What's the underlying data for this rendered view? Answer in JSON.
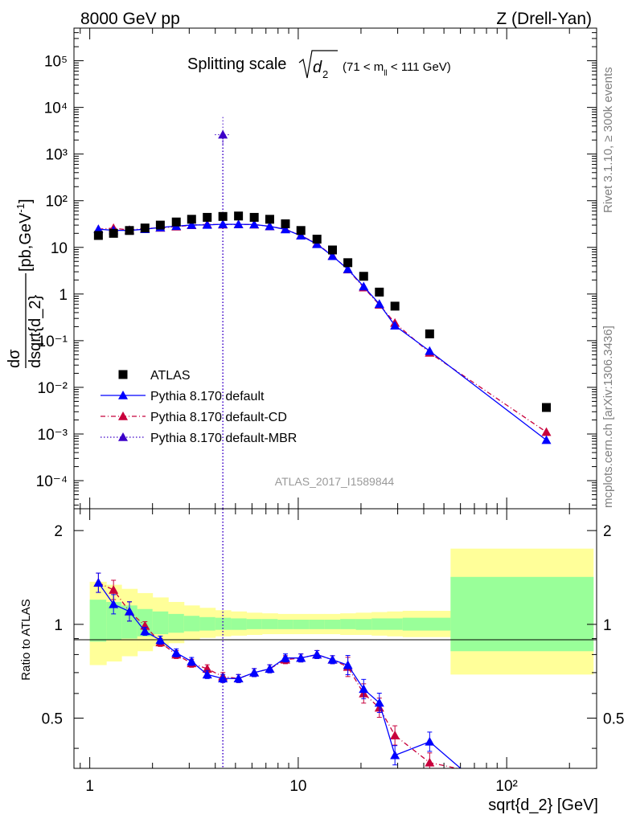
{
  "header": {
    "left": "8000 GeV pp",
    "right": "Z (Drell-Yan)"
  },
  "side_text": {
    "rivet": "Rivet 3.1.10, ≥ 300k events",
    "site": "mcplots.cern.ch [arXiv:1306.3436]"
  },
  "chart_data": [
    {
      "type": "scatter",
      "title": "Splitting scale √d₂ (71 < m_ll < 111 GeV)",
      "title_parts": {
        "main": "Splitting scale",
        "sub": "2",
        "cut": "(71 < m",
        "cut_sub": "ll",
        "cut_end": " < 111 GeV)"
      },
      "ylabel": "dσ / dsqrt{d_2} [pb,GeV⁻¹]",
      "ylabel_parts": {
        "num": "dσ",
        "den": "dsqrt{d_2}",
        "unit": " [pb,GeV",
        "unit_sup": "-1",
        "unit_end": "]"
      },
      "xlabel": "",
      "watermark": "ATLAS_2017_I1589844",
      "xscale": "log",
      "yscale": "log",
      "xlim": [
        0.84,
        270
      ],
      "ylim": [
        2.5e-05,
        500000
      ],
      "x_ticks": [
        "1",
        "10",
        "10²"
      ],
      "y_ticks": [
        "10⁻⁴",
        "10⁻³",
        "10⁻²",
        "10⁻¹",
        "1",
        "10",
        "10²",
        "10³",
        "10⁴",
        "10⁵"
      ],
      "legend_position": "bottom-left",
      "legend": [
        {
          "name": "ATLAS",
          "color": "#000000",
          "marker": "square"
        },
        {
          "name": "Pythia 8.170 default",
          "color": "#0000ff",
          "marker": "triangle",
          "dash": "solid"
        },
        {
          "name": "Pythia 8.170 default-CD",
          "color": "#c8003c",
          "marker": "triangle",
          "dash": "dashdot"
        },
        {
          "name": "Pythia 8.170 default-MBR",
          "color": "#3c00c8",
          "marker": "triangle",
          "dash": "dotted"
        }
      ],
      "x": [
        1.1,
        1.3,
        1.55,
        1.84,
        2.18,
        2.6,
        3.08,
        3.66,
        4.35,
        5.17,
        6.15,
        7.3,
        8.68,
        10.3,
        12.3,
        14.6,
        17.3,
        20.6,
        24.5,
        29.1,
        42.7,
        155
      ],
      "series": [
        {
          "name": "ATLAS",
          "values": [
            18,
            20,
            23,
            26,
            30,
            35,
            40,
            44,
            46,
            47,
            44,
            40,
            32,
            23,
            15,
            8.8,
            4.7,
            2.4,
            1.1,
            0.55,
            0.14,
            0.0037
          ]
        },
        {
          "name": "Pythia 8.170 default",
          "values": [
            24.5,
            23.2,
            23.1,
            24.5,
            26.7,
            28.5,
            30.2,
            30.3,
            31.3,
            31.2,
            30.9,
            28.3,
            24.2,
            17.8,
            11.7,
            6.5,
            3.4,
            1.45,
            0.61,
            0.21,
            0.06,
            0.00074
          ]
        },
        {
          "name": "Pythia 8.170 default-CD",
          "values": [
            24.5,
            25.8,
            23.5,
            25.4,
            26.2,
            27.8,
            29.8,
            31.0,
            30.8,
            31.0,
            30.8,
            28.2,
            24.6,
            18.0,
            12.0,
            6.6,
            3.35,
            1.38,
            0.59,
            0.24,
            0.055,
            0.0011
          ]
        },
        {
          "name": "Pythia 8.170 default-MBR",
          "x": [
            4.35
          ],
          "values": [
            2600
          ]
        }
      ]
    },
    {
      "type": "line",
      "ylabel": "Ratio to ATLAS",
      "xlabel": "sqrt{d_2} [GeV]",
      "xscale": "log",
      "xlim": [
        0.84,
        270
      ],
      "ylim": [
        0.345,
        2.35
      ],
      "y_ticks": [
        "0.5",
        "1",
        "2"
      ],
      "x_ticks": [
        "1",
        "10",
        "10²"
      ],
      "band_x_edges": [
        1,
        1.2,
        1.42,
        1.69,
        2.0,
        2.38,
        2.83,
        3.36,
        4.0,
        4.75,
        5.65,
        6.7,
        7.97,
        9.47,
        11.26,
        13.38,
        15.9,
        18.9,
        22.5,
        26.7,
        31.7,
        53.8,
        260
      ],
      "band_inner": [
        [
          0.88,
          0.89,
          0.9,
          0.915,
          0.93,
          0.94,
          0.95,
          0.955,
          0.96,
          0.96,
          0.965,
          0.965,
          0.965,
          0.965,
          0.965,
          0.965,
          0.965,
          0.96,
          0.96,
          0.96,
          0.955,
          0.82
        ],
        [
          1.2,
          1.18,
          1.15,
          1.12,
          1.1,
          1.08,
          1.065,
          1.055,
          1.05,
          1.045,
          1.04,
          1.04,
          1.035,
          1.035,
          1.035,
          1.035,
          1.04,
          1.04,
          1.045,
          1.045,
          1.05,
          1.42
        ]
      ],
      "band_outer": [
        [
          0.74,
          0.76,
          0.79,
          0.82,
          0.85,
          0.87,
          0.89,
          0.905,
          0.915,
          0.92,
          0.925,
          0.93,
          0.93,
          0.93,
          0.93,
          0.93,
          0.925,
          0.925,
          0.92,
          0.915,
          0.91,
          0.69
        ],
        [
          1.37,
          1.34,
          1.3,
          1.26,
          1.22,
          1.18,
          1.15,
          1.13,
          1.11,
          1.1,
          1.09,
          1.085,
          1.08,
          1.08,
          1.08,
          1.08,
          1.085,
          1.09,
          1.095,
          1.1,
          1.105,
          1.75
        ]
      ],
      "series": [
        {
          "name": "Pythia 8.170 default",
          "values": [
            1.36,
            1.16,
            1.1,
            0.95,
            0.89,
            0.81,
            0.76,
            0.69,
            0.67,
            0.67,
            0.7,
            0.72,
            0.78,
            0.78,
            0.8,
            0.77,
            0.74,
            0.62,
            0.56,
            0.38,
            0.42,
            0.2
          ]
        },
        {
          "name": "Pythia 8.170 default-CD",
          "values": [
            1.36,
            1.29,
            1.1,
            0.99,
            0.875,
            0.8,
            0.75,
            0.72,
            0.68,
            0.67,
            0.7,
            0.72,
            0.77,
            0.78,
            0.8,
            0.77,
            0.73,
            0.6,
            0.54,
            0.44,
            0.36,
            0.3
          ]
        }
      ]
    }
  ]
}
